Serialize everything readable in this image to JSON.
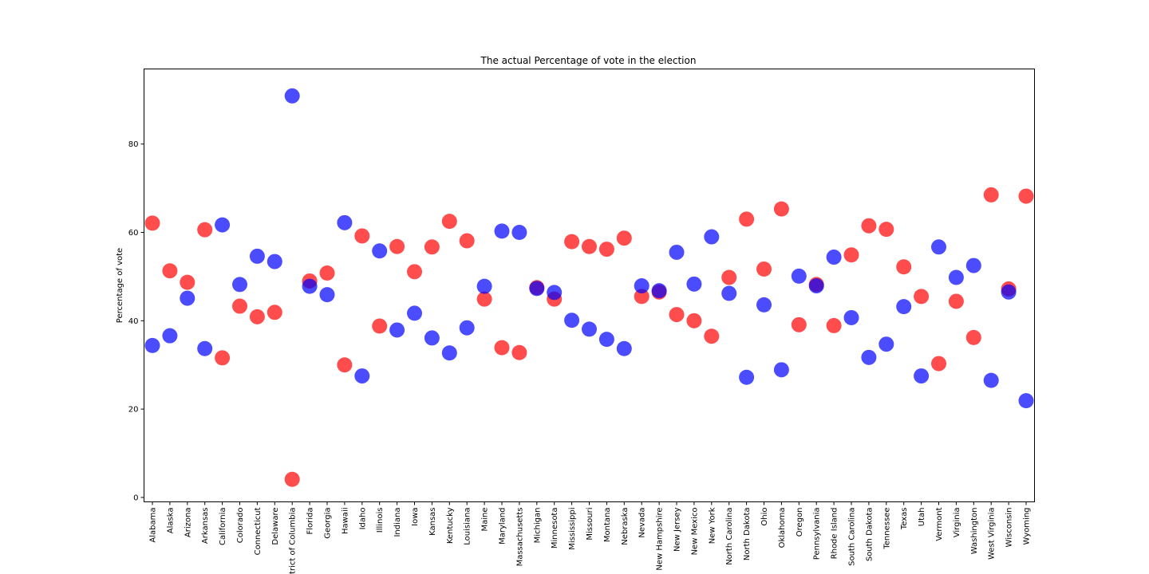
{
  "chart_data": {
    "type": "scatter",
    "title": "The actual Percentage of vote in the election",
    "xlabel": "",
    "ylabel": "Percentage of vote",
    "ylim": [
      -1,
      97
    ],
    "yticks": [
      0,
      20,
      40,
      60,
      80
    ],
    "grid": false,
    "legend": "none",
    "categories": [
      "Alabama",
      "Alaska",
      "Arizona",
      "Arkansas",
      "California",
      "Colorado",
      "Connecticut",
      "Delaware",
      "District of Columbia",
      "Florida",
      "Georgia",
      "Hawaii",
      "Idaho",
      "Illinois",
      "Indiana",
      "Iowa",
      "Kansas",
      "Kentucky",
      "Louisiana",
      "Maine",
      "Maryland",
      "Massachusetts",
      "Michigan",
      "Minnesota",
      "Mississippi",
      "Missouri",
      "Montana",
      "Nebraska",
      "Nevada",
      "New Hampshire",
      "New Jersey",
      "New Mexico",
      "New York",
      "North Carolina",
      "North Dakota",
      "Ohio",
      "Oklahoma",
      "Oregon",
      "Pennsylvania",
      "Rhode Island",
      "South Carolina",
      "South Dakota",
      "Tennessee",
      "Texas",
      "Utah",
      "Vermont",
      "Virginia",
      "Washington",
      "West Virginia",
      "Wisconsin",
      "Wyoming"
    ],
    "series": [
      {
        "color": "#ff0000",
        "values": [
          62.1,
          51.3,
          48.7,
          60.6,
          31.6,
          43.3,
          40.9,
          41.9,
          4.1,
          49.0,
          50.8,
          30.0,
          59.2,
          38.8,
          56.8,
          51.1,
          56.7,
          62.5,
          58.1,
          44.9,
          33.9,
          32.8,
          47.5,
          44.9,
          57.9,
          56.8,
          56.2,
          58.7,
          45.5,
          46.5,
          41.4,
          40.0,
          36.5,
          49.8,
          63.0,
          51.7,
          65.3,
          39.1,
          48.2,
          38.9,
          54.9,
          61.5,
          60.7,
          52.2,
          45.5,
          30.3,
          44.4,
          36.2,
          68.5,
          47.2,
          68.2
        ]
      },
      {
        "color": "#0000ff",
        "values": [
          34.4,
          36.6,
          45.1,
          33.7,
          61.7,
          48.2,
          54.6,
          53.4,
          90.9,
          47.8,
          45.9,
          62.2,
          27.5,
          55.8,
          37.9,
          41.7,
          36.1,
          32.7,
          38.4,
          47.8,
          60.3,
          60.0,
          47.3,
          46.4,
          40.1,
          38.1,
          35.8,
          33.7,
          47.9,
          46.8,
          55.5,
          48.3,
          59.0,
          46.2,
          27.2,
          43.6,
          28.9,
          50.1,
          47.9,
          54.4,
          40.7,
          31.7,
          34.7,
          43.2,
          27.5,
          56.7,
          49.8,
          52.5,
          26.5,
          46.5,
          21.9
        ]
      }
    ]
  }
}
